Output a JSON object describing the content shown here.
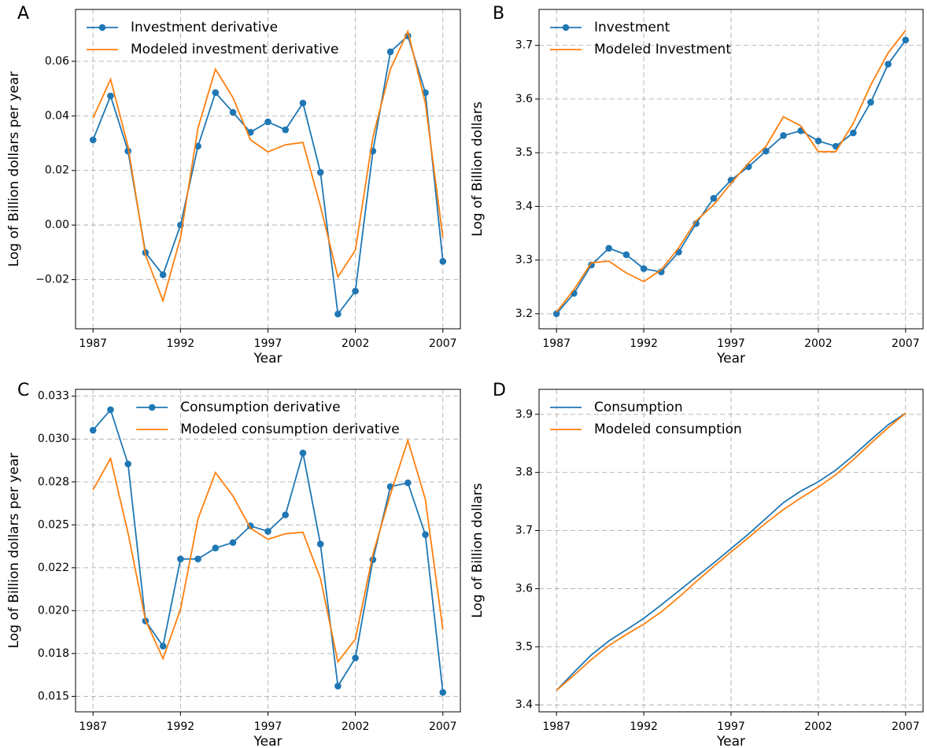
{
  "chart_data": [
    {
      "type": "line",
      "panel_label": "A",
      "xlabel": "Year",
      "ylabel": "Log of Billion dollars per year",
      "x": [
        1987,
        1988,
        1989,
        1990,
        1991,
        1992,
        1993,
        1994,
        1995,
        1996,
        1997,
        1998,
        1999,
        2000,
        2001,
        2002,
        2003,
        2004,
        2005,
        2006,
        2007
      ],
      "xlim": [
        1986,
        2008
      ],
      "xticks": [
        1987,
        1992,
        1997,
        2002,
        2007
      ],
      "ylim": [
        -0.038,
        0.079
      ],
      "yticks": [
        {
          "value": -0.02,
          "label": "−0.02"
        },
        {
          "value": 0,
          "label": "0.00"
        },
        {
          "value": 0.02,
          "label": "0.02"
        },
        {
          "value": 0.04,
          "label": "0.04"
        },
        {
          "value": 0.06,
          "label": "0.06"
        }
      ],
      "grid": true,
      "legend": "upper left",
      "series": [
        {
          "name": "Investment derivative",
          "color": "#1f77b4",
          "markers": true,
          "values": [
            0.0312,
            0.0473,
            0.0271,
            -0.0101,
            -0.0182,
            0.0,
            0.0289,
            0.0485,
            0.0413,
            0.034,
            0.0378,
            0.0349,
            0.0447,
            0.0193,
            -0.0326,
            -0.0242,
            0.0271,
            0.0635,
            0.0693,
            0.0485,
            -0.0133
          ]
        },
        {
          "name": "Modeled investment derivative",
          "color": "#ff7f0e",
          "markers": false,
          "values": [
            0.0392,
            0.0534,
            0.0289,
            -0.011,
            -0.0277,
            -0.0046,
            0.0355,
            0.0571,
            0.0467,
            0.0312,
            0.0268,
            0.0294,
            0.0303,
            0.0069,
            -0.019,
            -0.0092,
            0.0323,
            0.0571,
            0.071,
            0.0447,
            -0.0046
          ]
        }
      ]
    },
    {
      "type": "line",
      "panel_label": "B",
      "xlabel": "Year",
      "ylabel": "Log of Billion dollars",
      "x": [
        1987,
        1988,
        1989,
        1990,
        1991,
        1992,
        1993,
        1994,
        1995,
        1996,
        1997,
        1998,
        1999,
        2000,
        2001,
        2002,
        2003,
        2004,
        2005,
        2006,
        2007
      ],
      "xlim": [
        1986,
        2008
      ],
      "xticks": [
        1987,
        1992,
        1997,
        2002,
        2007
      ],
      "ylim": [
        3.172,
        3.767
      ],
      "yticks": [
        3.2,
        3.3,
        3.4,
        3.5,
        3.6,
        3.7
      ],
      "grid": true,
      "legend": "upper left",
      "series": [
        {
          "name": "Investment",
          "color": "#1f77b4",
          "markers": true,
          "values": [
            3.2,
            3.238,
            3.291,
            3.322,
            3.31,
            3.284,
            3.278,
            3.315,
            3.368,
            3.415,
            3.449,
            3.474,
            3.503,
            3.532,
            3.541,
            3.522,
            3.512,
            3.537,
            3.594,
            3.665,
            3.71
          ]
        },
        {
          "name": "Modeled Investment",
          "color": "#ff7f0e",
          "markers": false,
          "values": [
            3.203,
            3.245,
            3.295,
            3.298,
            3.276,
            3.26,
            3.282,
            3.323,
            3.373,
            3.403,
            3.443,
            3.481,
            3.512,
            3.567,
            3.55,
            3.502,
            3.502,
            3.555,
            3.626,
            3.686,
            3.728
          ]
        }
      ]
    },
    {
      "type": "line",
      "panel_label": "C",
      "xlabel": "Year",
      "ylabel": "Log of Billion dollars per year",
      "x": [
        1987,
        1988,
        1989,
        1990,
        1991,
        1992,
        1993,
        1994,
        1995,
        1996,
        1997,
        1998,
        1999,
        2000,
        2001,
        2002,
        2003,
        2004,
        2005,
        2006,
        2007
      ],
      "xlim": [
        1986,
        2008
      ],
      "xticks": [
        1987,
        1992,
        1997,
        2002,
        2007
      ],
      "ylim": [
        0.0141,
        0.0329
      ],
      "yticks": [
        {
          "value": 0.015,
          "label": "0.015"
        },
        {
          "value": 0.0175,
          "label": "0.018"
        },
        {
          "value": 0.02,
          "label": "0.020"
        },
        {
          "value": 0.0225,
          "label": "0.022"
        },
        {
          "value": 0.025,
          "label": "0.025"
        },
        {
          "value": 0.0275,
          "label": "0.028"
        },
        {
          "value": 0.03,
          "label": "0.030"
        },
        {
          "value": 0.0325,
          "label": "0.033"
        }
      ],
      "grid": true,
      "legend": "upper center",
      "series": [
        {
          "name": "Consumption derivative",
          "color": "#1f77b4",
          "markers": true,
          "values": [
            0.03052,
            0.03171,
            0.02855,
            0.0194,
            0.01793,
            0.02301,
            0.02301,
            0.02365,
            0.02397,
            0.02494,
            0.02462,
            0.02558,
            0.02919,
            0.02388,
            0.0156,
            0.01724,
            0.02297,
            0.02723,
            0.02745,
            0.02443,
            0.01523
          ]
        },
        {
          "name": "Modeled consumption derivative",
          "color": "#ff7f0e",
          "markers": false,
          "values": [
            0.02704,
            0.02887,
            0.02452,
            0.01944,
            0.0172,
            0.02008,
            0.02535,
            0.02805,
            0.02668,
            0.0248,
            0.02416,
            0.02448,
            0.02457,
            0.02187,
            0.01701,
            0.01834,
            0.02329,
            0.02677,
            0.02993,
            0.02649,
            0.01889
          ]
        }
      ]
    },
    {
      "type": "line",
      "panel_label": "D",
      "xlabel": "Year",
      "ylabel": "Log of Billion dollars",
      "x": [
        1987,
        1988,
        1989,
        1990,
        1991,
        1992,
        1993,
        1994,
        1995,
        1996,
        1997,
        1998,
        1999,
        2000,
        2001,
        2002,
        2003,
        2004,
        2005,
        2006,
        2007
      ],
      "xlim": [
        1986,
        2008
      ],
      "xticks": [
        1987,
        1992,
        1997,
        2002,
        2007
      ],
      "ylim": [
        3.388,
        3.943
      ],
      "yticks": [
        3.4,
        3.5,
        3.6,
        3.7,
        3.8,
        3.9
      ],
      "grid": true,
      "legend": "upper left",
      "series": [
        {
          "name": "Consumption",
          "color": "#1f77b4",
          "markers": false,
          "values": [
            3.425,
            3.456,
            3.486,
            3.51,
            3.529,
            3.549,
            3.572,
            3.596,
            3.62,
            3.644,
            3.669,
            3.694,
            3.721,
            3.748,
            3.768,
            3.784,
            3.804,
            3.829,
            3.856,
            3.882,
            3.902
          ]
        },
        {
          "name": "Modeled consumption",
          "color": "#ff7f0e",
          "markers": false,
          "values": [
            3.425,
            3.451,
            3.478,
            3.502,
            3.521,
            3.539,
            3.56,
            3.585,
            3.612,
            3.638,
            3.663,
            3.688,
            3.713,
            3.736,
            3.756,
            3.775,
            3.796,
            3.822,
            3.85,
            3.877,
            3.902
          ]
        }
      ]
    }
  ]
}
